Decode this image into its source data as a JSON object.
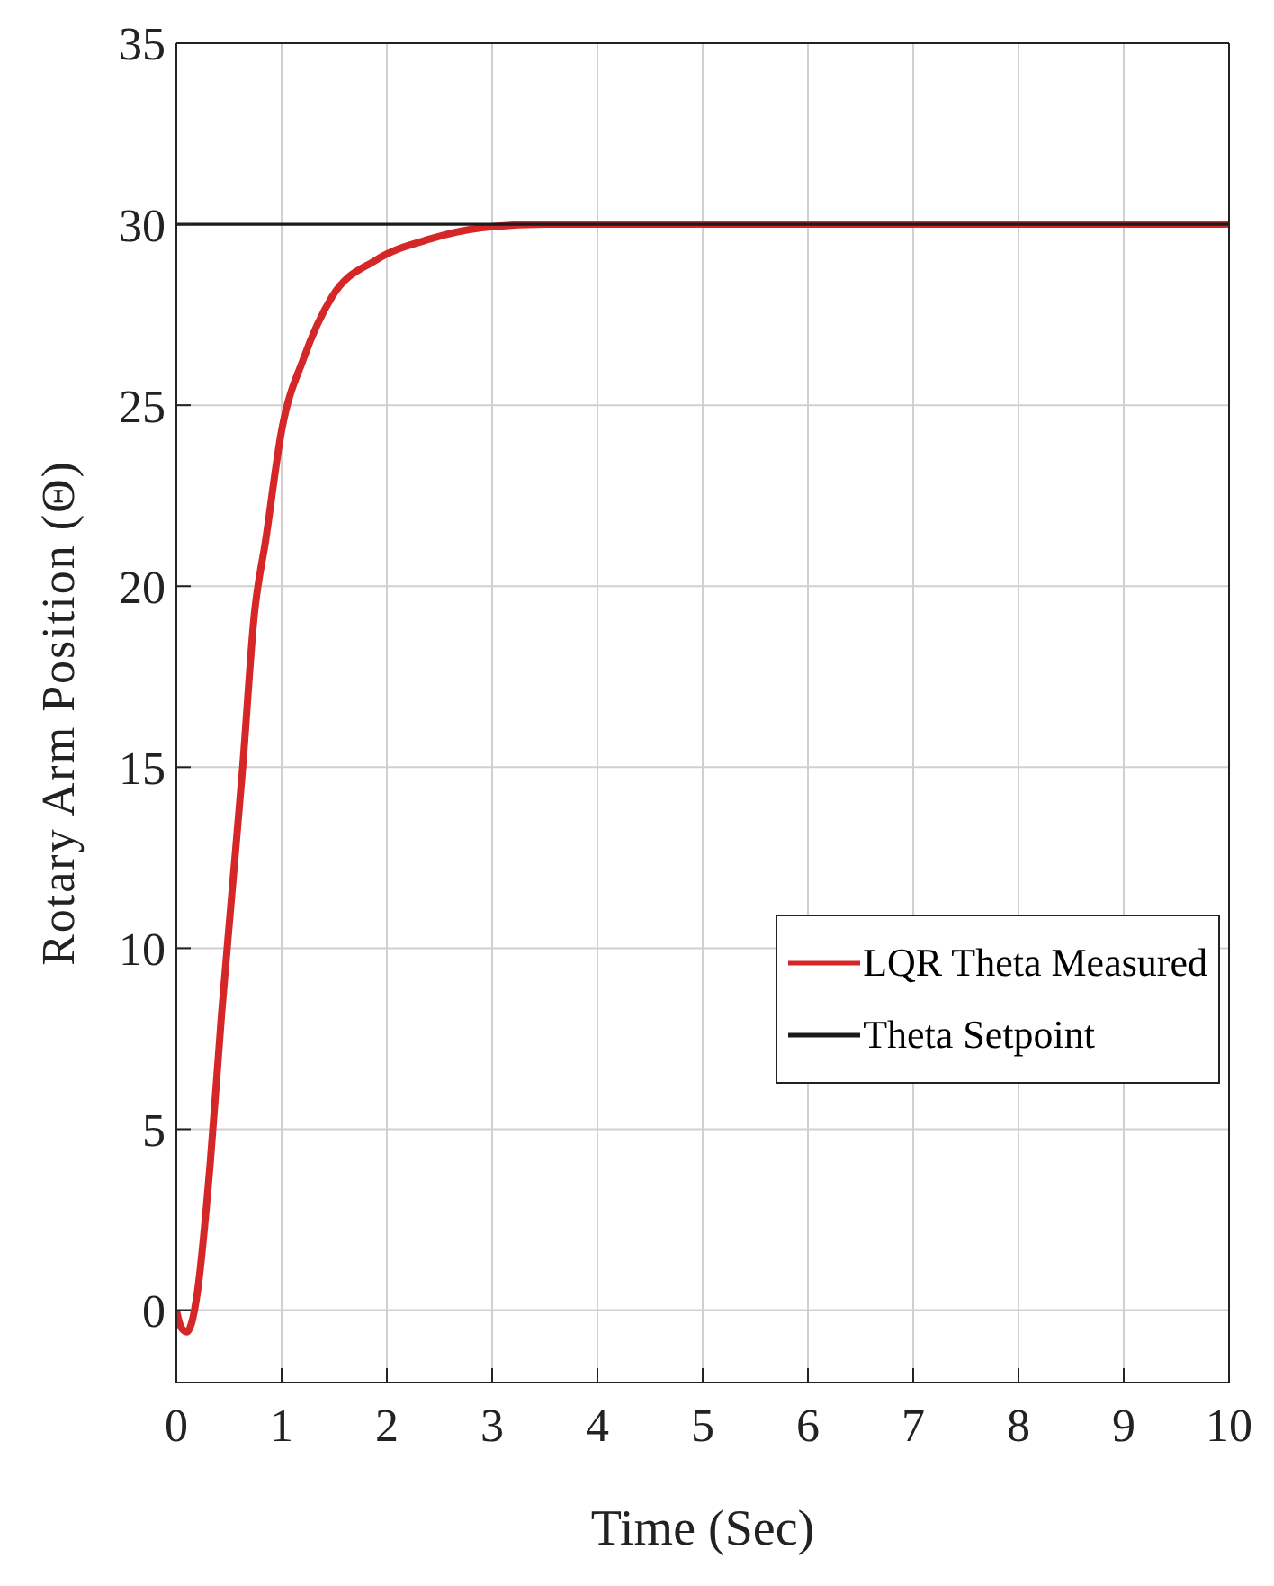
{
  "chart_data": {
    "type": "line",
    "xlabel": "Time (Sec)",
    "ylabel": "Rotary Arm Position (Θ)",
    "xlim": [
      0,
      10
    ],
    "ylim": [
      -2,
      35
    ],
    "xticks": [
      0,
      1,
      2,
      3,
      4,
      5,
      6,
      7,
      8,
      9,
      10
    ],
    "yticks": [
      0,
      5,
      10,
      15,
      20,
      25,
      30,
      35
    ],
    "grid": true,
    "legend": "right",
    "line_style": "solid",
    "series": [
      {
        "name": "LQR Theta Measured",
        "color": "#d62728",
        "x": [
          0,
          0.05,
          0.1,
          0.15,
          0.2,
          0.32,
          0.43,
          0.53,
          0.63,
          0.74,
          0.85,
          1.0,
          1.21,
          1.48,
          1.89,
          2.42,
          2.9,
          3.5,
          10
        ],
        "values": [
          0,
          -0.5,
          -0.6,
          -0.3,
          0.5,
          4.0,
          8.2,
          11.6,
          15,
          19.2,
          21.3,
          24.3,
          26.3,
          28.0,
          29.0,
          29.6,
          29.9,
          30,
          30
        ]
      },
      {
        "name": "Theta Setpoint",
        "color": "#1a1a1a",
        "x": [
          0,
          10
        ],
        "values": [
          30,
          30
        ]
      }
    ]
  }
}
